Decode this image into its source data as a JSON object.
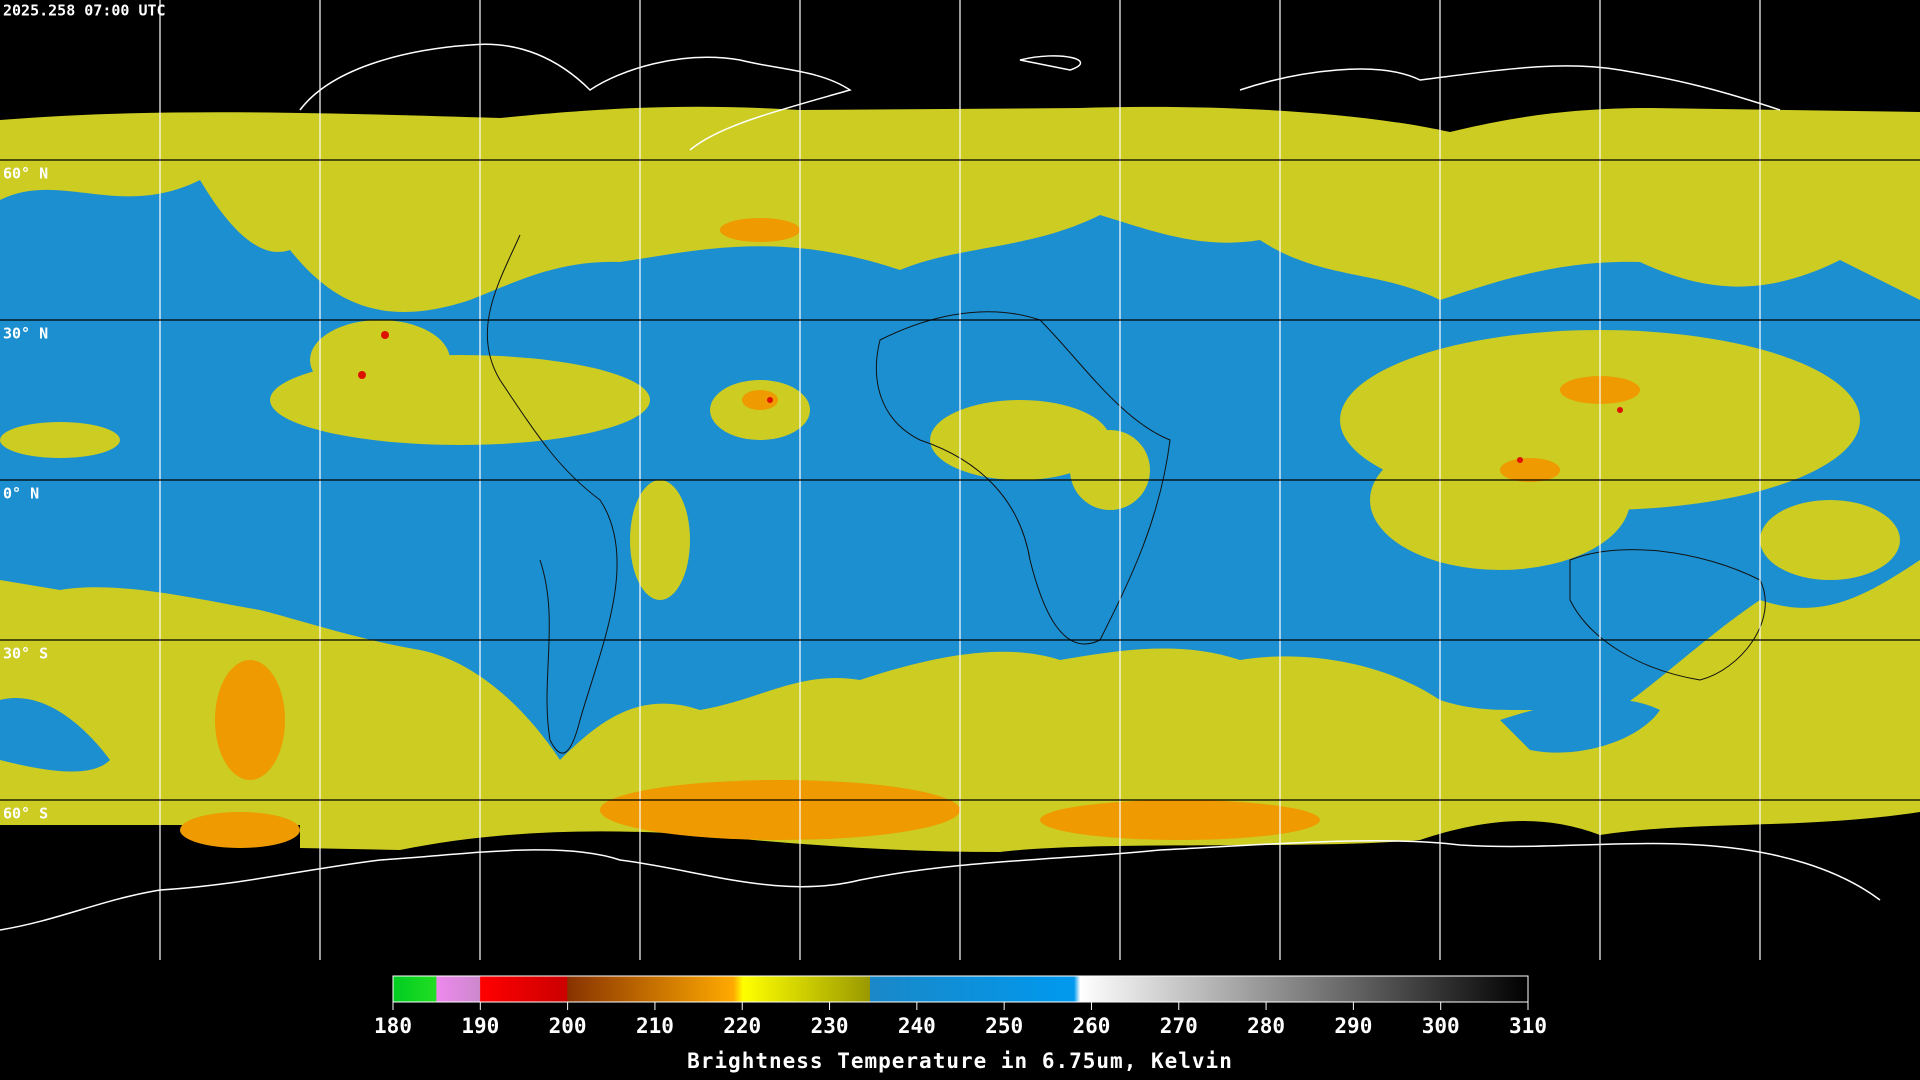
{
  "header": {
    "timestamp": "2025.258 07:00 UTC"
  },
  "grid": {
    "lat_labels": [
      "60° N",
      "30° N",
      "0° N",
      "30° S",
      "60° S"
    ]
  },
  "colorbar": {
    "range": [
      180,
      310
    ],
    "ticks": [
      180,
      190,
      200,
      210,
      220,
      230,
      240,
      250,
      260,
      270,
      280,
      290,
      300,
      310
    ],
    "title": "Brightness Temperature in 6.75um, Kelvin"
  }
}
